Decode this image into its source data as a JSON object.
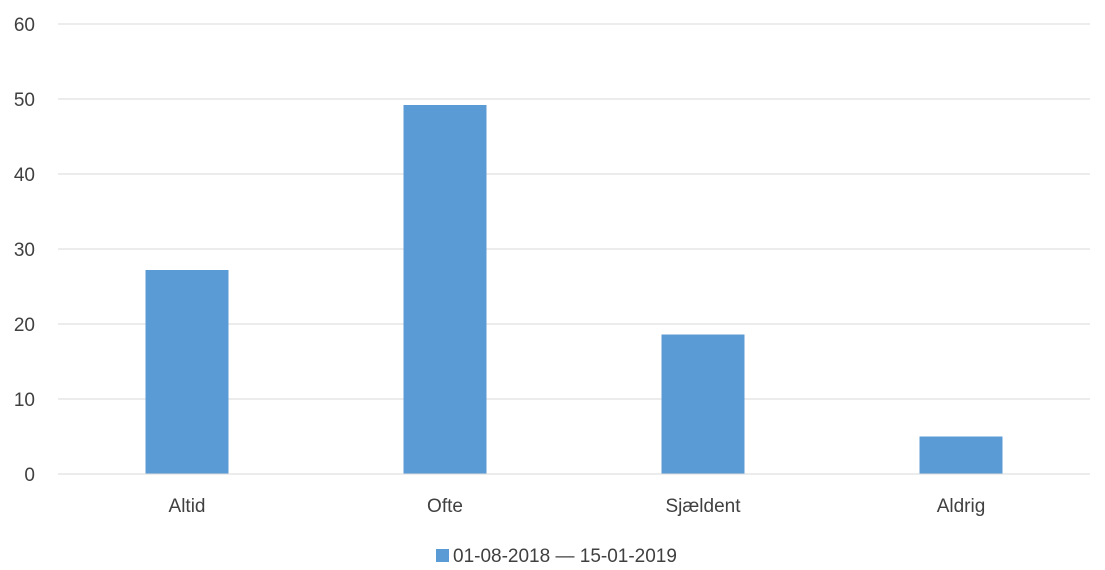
{
  "chart_data": {
    "type": "bar",
    "categories": [
      "Altid",
      "Ofte",
      "Sjældent",
      "Aldrig"
    ],
    "series": [
      {
        "name": "01-08-2018 — 15-01-2019",
        "values": [
          27.2,
          49.2,
          18.6,
          5.0
        ],
        "color": "#5b9bd5"
      }
    ],
    "ylim": [
      0,
      60
    ],
    "yticks": [
      0,
      10,
      20,
      30,
      40,
      50,
      60
    ],
    "grid": true,
    "legend": "bottom",
    "title": "",
    "xlabel": "",
    "ylabel": ""
  }
}
